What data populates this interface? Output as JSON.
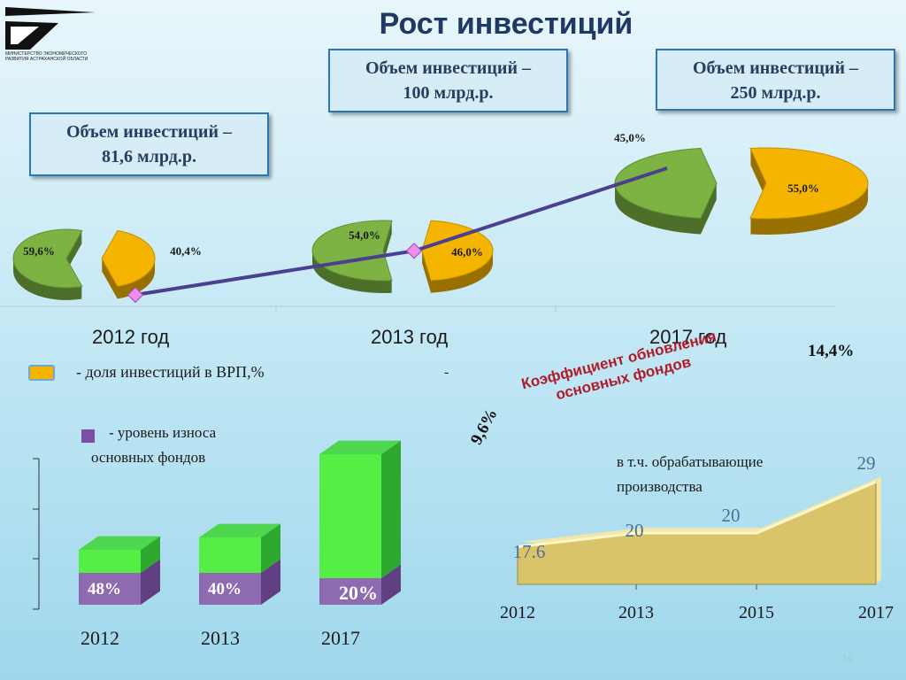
{
  "header": {
    "title": "Рост инвестиций",
    "logo_text": "МИНИСТЕРСТВО ЭКОНОМИЧЕСКОГО РАЗВИТИЯ АСТРАХАНСКОЙ ОБЛАСТИ"
  },
  "callouts": [
    {
      "line1": "Объем инвестиций –",
      "line2": "81,6 млрд.р."
    },
    {
      "line1": "Объем инвестиций –",
      "line2": "100  млрд.р."
    },
    {
      "line1": "Объем инвестиций –",
      "line2": "250  млрд.р."
    }
  ],
  "legend": {
    "vrp_label": "- доля инвестиций в ВРП,%",
    "vrp_dash": "-",
    "wear_label_line1": "- уровень износа",
    "wear_label_line2": "основных фондов"
  },
  "renewal": {
    "title": "Коэффициент обновления основных фондов",
    "value_2012": "9,6%",
    "value_2017": "14,4%",
    "subtitle_line1": "в т.ч. обрабатывающие",
    "subtitle_line2": "производства"
  },
  "page_number": "14",
  "colors": {
    "title": "#203864",
    "green_pie": "#7cb342",
    "gold_pie": "#f4b400",
    "line": "#4b3f8f",
    "bar_green": "#55ee44",
    "bar_purple": "#8e6bb0",
    "area": "#d9c46a",
    "renewal_title": "#b01c2a"
  },
  "chart_data": [
    {
      "type": "pie",
      "title": "доля инвестиций в ВРП,%",
      "categories": [
        "2012 год",
        "2013 год",
        "2017 год"
      ],
      "series": [
        {
          "year": "2012 год",
          "slices": [
            59.6,
            40.4
          ],
          "labels": [
            "59,6%",
            "40,4%"
          ]
        },
        {
          "year": "2013 год",
          "slices": [
            54.0,
            46.0
          ],
          "labels": [
            "54,0%",
            "46,0%"
          ]
        },
        {
          "year": "2017 год",
          "slices": [
            45.0,
            55.0
          ],
          "labels": [
            "45,0%",
            "55,0%"
          ]
        }
      ],
      "investment_line": {
        "x": [
          "2012 год",
          "2013 год",
          "2017 год"
        ],
        "values": [
          81.6,
          100,
          250
        ]
      }
    },
    {
      "type": "bar",
      "title": "уровень износа основных фондов",
      "categories": [
        "2012",
        "2013",
        "2017"
      ],
      "values": [
        48,
        40,
        20
      ],
      "labels": [
        "48%",
        "40%",
        "20%"
      ]
    },
    {
      "type": "area",
      "title": "в т.ч. обрабатывающие производства",
      "categories": [
        "2012",
        "2013",
        "2015",
        "2017"
      ],
      "values": [
        17.6,
        20,
        20,
        29
      ],
      "labels": [
        "17.6",
        "20",
        "20",
        "29"
      ]
    }
  ]
}
